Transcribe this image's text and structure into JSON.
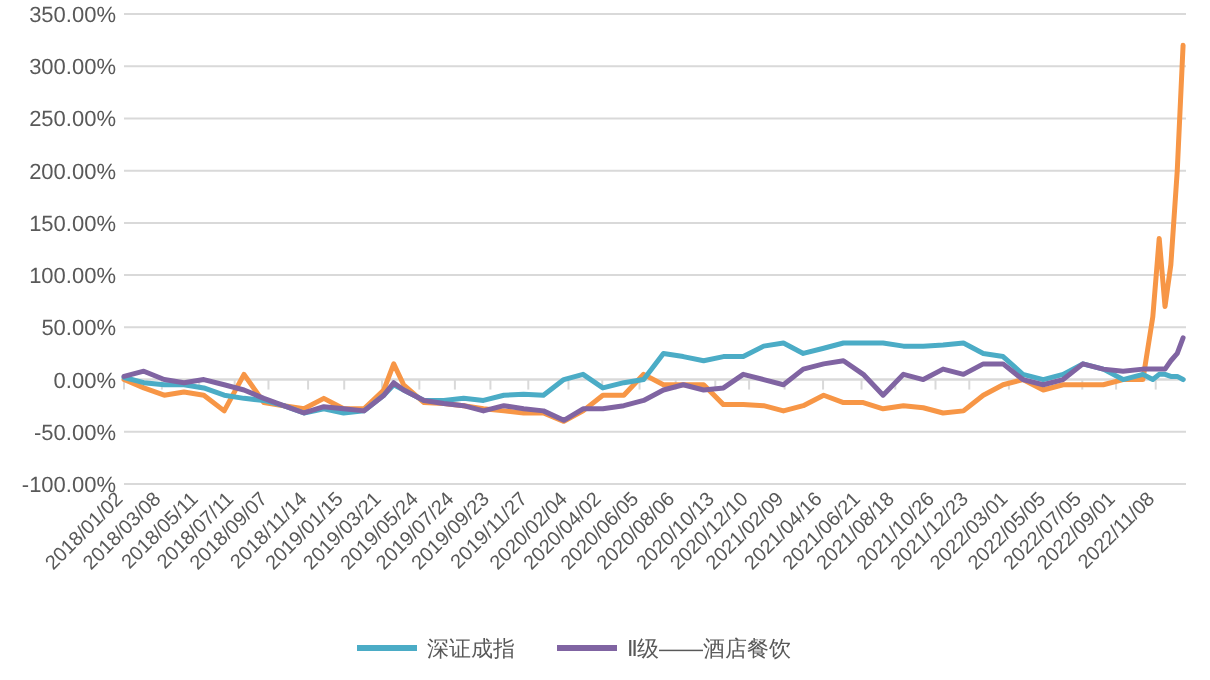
{
  "chart_data": {
    "type": "line",
    "x": [
      "2018-01-02",
      "2018-02-05",
      "2018-03-12",
      "2018-04-15",
      "2018-05-19",
      "2018-06-23",
      "2018-07-27",
      "2018-08-30",
      "2018-10-03",
      "2018-11-07",
      "2018-12-11",
      "2019-01-14",
      "2019-02-18",
      "2019-03-24",
      "2019-04-10",
      "2019-04-27",
      "2019-06-01",
      "2019-07-05",
      "2019-08-08",
      "2019-09-11",
      "2019-10-16",
      "2019-11-19",
      "2019-12-23",
      "2020-01-27",
      "2020-02-29",
      "2020-04-03",
      "2020-05-09",
      "2020-06-12",
      "2020-07-16",
      "2020-08-19",
      "2020-09-23",
      "2020-10-27",
      "2020-11-30",
      "2021-01-04",
      "2021-02-07",
      "2021-03-13",
      "2021-04-17",
      "2021-05-21",
      "2021-06-24",
      "2021-07-28",
      "2021-09-01",
      "2021-10-05",
      "2021-11-08",
      "2021-12-13",
      "2022-01-16",
      "2022-02-19",
      "2022-03-25",
      "2022-04-29",
      "2022-06-02",
      "2022-07-06",
      "2022-08-10",
      "2022-09-13",
      "2022-10-17",
      "2022-11-03",
      "2022-11-14",
      "2022-11-24",
      "2022-12-04",
      "2022-12-15",
      "2022-12-25"
    ],
    "series": [
      {
        "color": "#f79646",
        "values": [
          0,
          -8,
          -15,
          -12,
          -15,
          -30,
          5,
          -22,
          -25,
          -28,
          -18,
          -28,
          -28,
          -10,
          15,
          -5,
          -22,
          -23,
          -25,
          -28,
          -30,
          -32,
          -32,
          -40,
          -30,
          -15,
          -15,
          5,
          -5,
          -5,
          -5,
          -24,
          -24,
          -25,
          -30,
          -25,
          -15,
          -22,
          -22,
          -28,
          -25,
          -27,
          -32,
          -30,
          -15,
          -5,
          0,
          -10,
          -5,
          -5,
          -5,
          0,
          0,
          60,
          135,
          70,
          110,
          200,
          320
        ]
      },
      {
        "name": "深证成指",
        "color": "#4bacc6",
        "values": [
          2,
          -3,
          -5,
          -5,
          -8,
          -15,
          -18,
          -20,
          -25,
          -32,
          -28,
          -32,
          -30,
          -15,
          -5,
          -10,
          -20,
          -20,
          -18,
          -20,
          -15,
          -14,
          -15,
          0,
          5,
          -8,
          -3,
          0,
          25,
          22,
          18,
          22,
          22,
          32,
          35,
          25,
          30,
          35,
          35,
          35,
          32,
          32,
          33,
          35,
          25,
          22,
          5,
          0,
          5,
          15,
          10,
          0,
          5,
          0,
          5,
          5,
          3,
          3,
          0
        ]
      },
      {
        "name": "Ⅱ级——酒店餐饮",
        "color": "#8064a2",
        "values": [
          3,
          8,
          0,
          -3,
          0,
          -5,
          -10,
          -18,
          -25,
          -32,
          -26,
          -28,
          -30,
          -15,
          -3,
          -10,
          -20,
          -23,
          -25,
          -30,
          -25,
          -28,
          -30,
          -39,
          -28,
          -28,
          -25,
          -20,
          -10,
          -5,
          -10,
          -8,
          5,
          0,
          -5,
          10,
          15,
          18,
          5,
          -15,
          5,
          0,
          10,
          5,
          15,
          15,
          0,
          -5,
          0,
          15,
          10,
          8,
          10,
          10,
          10,
          10,
          18,
          25,
          40
        ]
      }
    ],
    "xlim": [
      "2018-01-02",
      "2022-12-30"
    ],
    "xticks": [
      {
        "value": "2018-01-02",
        "label": "2018/01/02"
      },
      {
        "value": "2018-03-08",
        "label": "2018/03/08"
      },
      {
        "value": "2018-05-11",
        "label": "2018/05/11"
      },
      {
        "value": "2018-07-11",
        "label": "2018/07/11"
      },
      {
        "value": "2018-09-07",
        "label": "2018/09/07"
      },
      {
        "value": "2018-11-14",
        "label": "2018/11/14"
      },
      {
        "value": "2019-01-15",
        "label": "2019/01/15"
      },
      {
        "value": "2019-03-21",
        "label": "2019/03/21"
      },
      {
        "value": "2019-05-24",
        "label": "2019/05/24"
      },
      {
        "value": "2019-07-24",
        "label": "2019/07/24"
      },
      {
        "value": "2019-09-23",
        "label": "2019/09/23"
      },
      {
        "value": "2019-11-27",
        "label": "2019/11/27"
      },
      {
        "value": "2020-02-04",
        "label": "2020/02/04"
      },
      {
        "value": "2020-04-02",
        "label": "2020/04/02"
      },
      {
        "value": "2020-06-05",
        "label": "2020/06/05"
      },
      {
        "value": "2020-08-06",
        "label": "2020/08/06"
      },
      {
        "value": "2020-10-13",
        "label": "2020/10/13"
      },
      {
        "value": "2020-12-10",
        "label": "2020/12/10"
      },
      {
        "value": "2021-02-09",
        "label": "2021/02/09"
      },
      {
        "value": "2021-04-16",
        "label": "2021/04/16"
      },
      {
        "value": "2021-06-21",
        "label": "2021/06/21"
      },
      {
        "value": "2021-08-18",
        "label": "2021/08/18"
      },
      {
        "value": "2021-10-26",
        "label": "2021/10/26"
      },
      {
        "value": "2021-12-23",
        "label": "2021/12/23"
      },
      {
        "value": "2022-03-01",
        "label": "2022/03/01"
      },
      {
        "value": "2022-05-05",
        "label": "2022/05/05"
      },
      {
        "value": "2022-07-05",
        "label": "2022/07/05"
      },
      {
        "value": "2022-09-01",
        "label": "2022/09/01"
      },
      {
        "value": "2022-11-08",
        "label": "2022/11/08"
      }
    ],
    "ylim": [
      -100,
      350
    ],
    "yticks": [
      {
        "value": -100,
        "label": "-100.00%"
      },
      {
        "value": -50,
        "label": "-50.00%"
      },
      {
        "value": 0,
        "label": "0.00%"
      },
      {
        "value": 50,
        "label": "50.00%"
      },
      {
        "value": 100,
        "label": "100.00%"
      },
      {
        "value": 150,
        "label": "150.00%"
      },
      {
        "value": 200,
        "label": "200.00%"
      },
      {
        "value": 250,
        "label": "250.00%"
      },
      {
        "value": 300,
        "label": "300.00%"
      },
      {
        "value": 350,
        "label": "350.00%"
      }
    ],
    "grid": "y",
    "legend": "bottom",
    "marker": "none",
    "line_style": "solid"
  }
}
